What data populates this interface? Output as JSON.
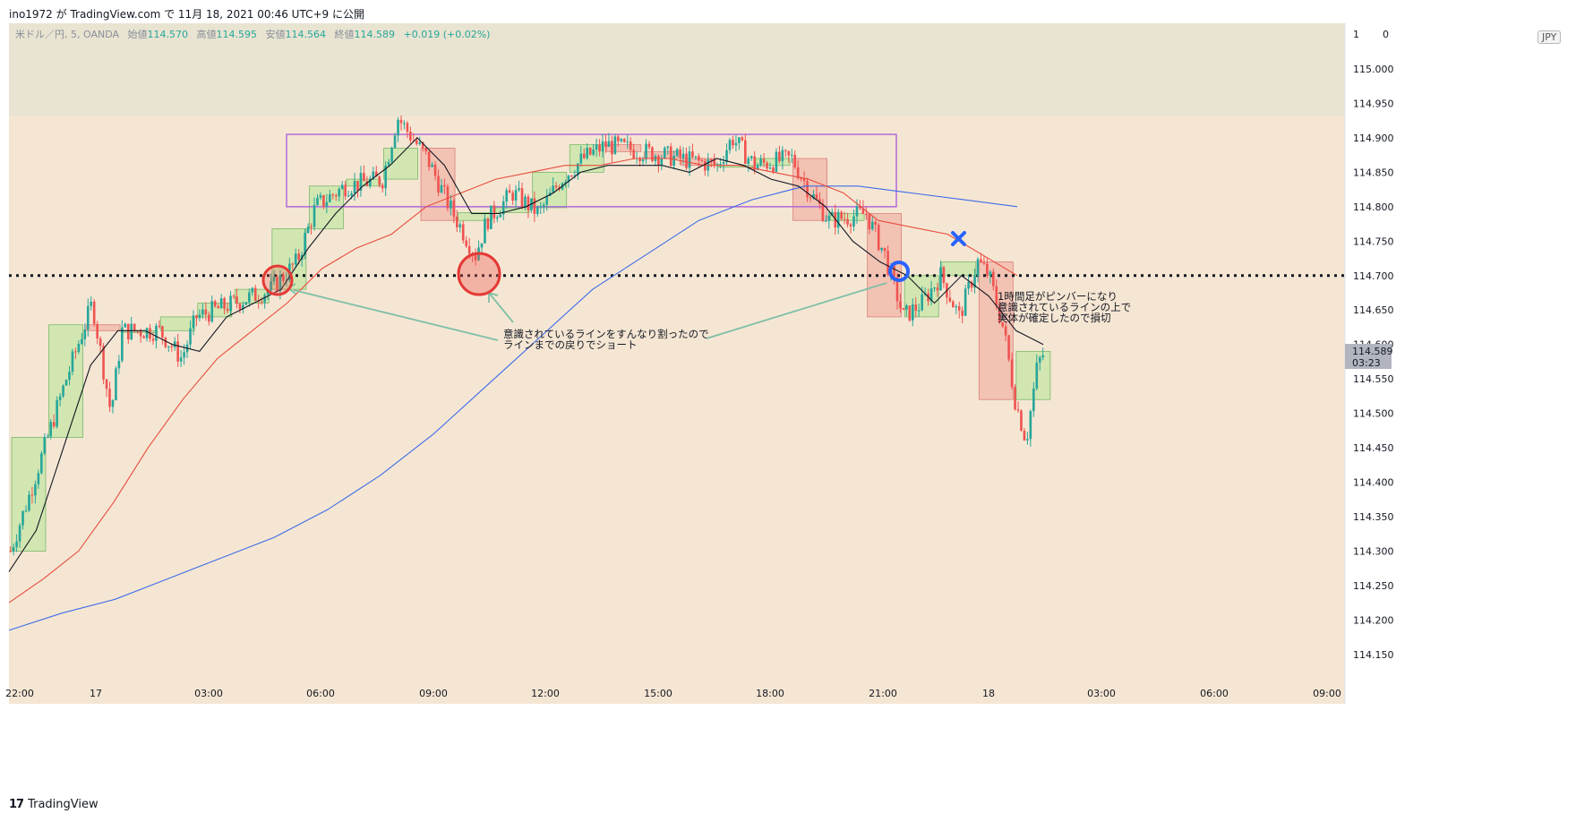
{
  "header": {
    "caption": "ino1972 が TradingView.com で 11月 18, 2021 00:46 UTC+9 に公開"
  },
  "legend": {
    "symbol": "米ドル／円, 5, OANDA",
    "open_label": "始値",
    "open": "114.570",
    "high_label": "高値",
    "high": "114.595",
    "low_label": "安値",
    "low": "114.564",
    "close_label": "終値",
    "close": "114.589",
    "change": "+0.019 (+0.02%)"
  },
  "price_axis": {
    "currency": "JPY",
    "top_label_fragment": "1",
    "top_label_fragment_right": "0"
  },
  "price_tag": {
    "price": "114.589",
    "countdown": "03:23"
  },
  "annotations": {
    "note1_line1": "意識されているラインをすんなり割ったので",
    "note1_line2": "ラインまでの戻りでショート",
    "note2_line1": "1時間足がピンバーになり",
    "note2_line2": "意識されているラインの上で",
    "note2_line3": "実体が確定したので損切"
  },
  "footer": {
    "brand": "TradingView"
  },
  "colors": {
    "background": "#f5e6d3",
    "top_band": "#e9e4d2",
    "bull": "#26a69a",
    "bear": "#ef5350",
    "ema_short": "#131722",
    "ema_mid": "#e74c3c",
    "ema_long": "#3d6ce8",
    "range_box": "#b06ad9",
    "arrow": "#7fbfa7",
    "circle_red": "#e53935",
    "marker_blue": "#2962ff"
  },
  "chart_data": {
    "type": "candlestick",
    "symbol": "米ドル／円, 5, OANDA",
    "yticks": [
      "114.150",
      "114.200",
      "114.250",
      "114.300",
      "114.350",
      "114.400",
      "114.450",
      "114.500",
      "114.550",
      "114.600",
      "114.650",
      "114.700",
      "114.750",
      "114.800",
      "114.850",
      "114.900",
      "114.950",
      "115.000"
    ],
    "xticks": [
      "22:00",
      "17",
      "03:00",
      "06:00",
      "09:00",
      "12:00",
      "15:00",
      "18:00",
      "21:00",
      "18",
      "03:00",
      "06:00",
      "09:00"
    ],
    "ylim": [
      114.115,
      115.07
    ],
    "horizontal_line": 114.7,
    "range_box": {
      "from": "04:45",
      "to": "21:30",
      "low": 114.8,
      "high": 114.905
    },
    "series": [
      {
        "name": "EMA short",
        "values": [
          114.27,
          114.33,
          114.45,
          114.57,
          114.62,
          114.62,
          114.6,
          114.59,
          114.64,
          114.66,
          114.68,
          114.74,
          114.79,
          114.83,
          114.86,
          114.9,
          114.86,
          114.79,
          114.79,
          114.8,
          114.82,
          114.85,
          114.86,
          114.86,
          114.86,
          114.85,
          114.87,
          114.86,
          114.84,
          114.83,
          114.8,
          114.75,
          114.72,
          114.7,
          114.66,
          114.7,
          114.67,
          114.62,
          114.6
        ]
      },
      {
        "name": "EMA mid",
        "values": [
          114.225,
          114.26,
          114.3,
          114.37,
          114.45,
          114.52,
          114.58,
          114.62,
          114.66,
          114.71,
          114.74,
          114.76,
          114.8,
          114.82,
          114.84,
          114.85,
          114.86,
          114.86,
          114.87,
          114.87,
          114.86,
          114.86,
          114.85,
          114.84,
          114.82,
          114.78,
          114.77,
          114.76,
          114.73,
          114.7
        ]
      },
      {
        "name": "EMA long",
        "values": [
          114.185,
          114.21,
          114.23,
          114.26,
          114.29,
          114.32,
          114.36,
          114.41,
          114.47,
          114.54,
          114.61,
          114.68,
          114.73,
          114.78,
          114.81,
          114.83,
          114.83,
          114.82,
          114.81,
          114.8
        ]
      }
    ]
  }
}
